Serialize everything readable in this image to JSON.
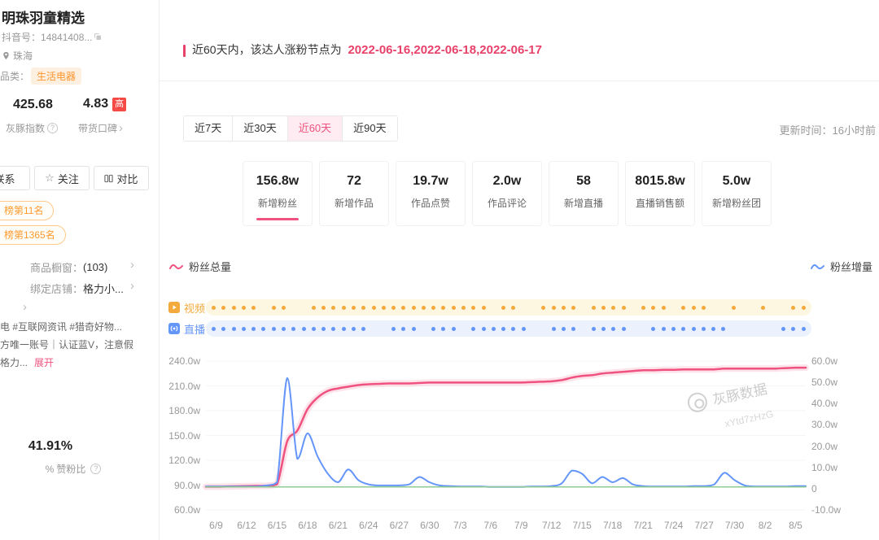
{
  "sidebar": {
    "title": "明珠羽童精选",
    "douyin_id_label": "抖音号：",
    "douyin_id": "14841408...",
    "location": "珠海",
    "category_label": "品类：",
    "category_tag": "生活电器",
    "index_value": "425.68",
    "index_label": "灰豚指数",
    "reputation_value": "4.83",
    "reputation_badge": "高",
    "reputation_label": "带货口碑",
    "contact_button": "联系",
    "follow_button": "关注",
    "compare_button": "对比",
    "rank_badges": [
      "榜第11名",
      "榜第1365名"
    ],
    "shop_window_label": "商品橱窗：",
    "shop_window_count": "(103)",
    "bound_shop_label": "绑定店铺：",
    "bound_shop_value": "格力小...",
    "intro_line1": "电 #互联网资讯 #猎奇好物...",
    "intro_line2": "方唯一账号｜认证蓝V，注意假",
    "intro_line3": "格力...",
    "expand_button": "展开",
    "like_fan_ratio": "41.91%",
    "like_fan_ratio_icon": "%",
    "like_fan_ratio_label": "赞粉比"
  },
  "main": {
    "notice_prefix": "近60天内，该达人涨粉节点为",
    "notice_dates": "2022-06-16,2022-06-18,2022-06-17",
    "accent_color": "#e8426b",
    "tabs": [
      {
        "label": "近7天",
        "active": false
      },
      {
        "label": "近30天",
        "active": false
      },
      {
        "label": "近60天",
        "active": true
      },
      {
        "label": "近90天",
        "active": false
      }
    ],
    "update_time": "更新时间：16小时前",
    "stat_cards": [
      {
        "value": "156.8w",
        "label": "新增粉丝",
        "active": true
      },
      {
        "value": "72",
        "label": "新增作品",
        "active": false
      },
      {
        "value": "19.7w",
        "label": "作品点赞",
        "active": false
      },
      {
        "value": "2.0w",
        "label": "作品评论",
        "active": false
      },
      {
        "value": "58",
        "label": "新增直播",
        "active": false
      },
      {
        "value": "8015.8w",
        "label": "直播销售额",
        "active": false
      },
      {
        "value": "5.0w",
        "label": "新增粉丝团",
        "active": false
      }
    ],
    "legend_left": "粉丝总量",
    "legend_right": "粉丝增量",
    "timeline_rows": [
      {
        "label": "视频",
        "color": "#f3a93c",
        "bg": "#fdf6e0",
        "dots": [
          1,
          1,
          1,
          1,
          1,
          0,
          1,
          1,
          0,
          0,
          1,
          1,
          1,
          1,
          1,
          1,
          1,
          1,
          1,
          1,
          1,
          1,
          1,
          1,
          1,
          1,
          1,
          1,
          0,
          1,
          1,
          0,
          0,
          1,
          1,
          1,
          1,
          0,
          1,
          1,
          1,
          1,
          0,
          1,
          1,
          1,
          0,
          1,
          1,
          1,
          0,
          0,
          1,
          0,
          0,
          1,
          0,
          0,
          1,
          1
        ]
      },
      {
        "label": "直播",
        "color": "#6495f9",
        "bg": "#ebf2fe",
        "dots": [
          1,
          1,
          1,
          1,
          1,
          1,
          1,
          1,
          1,
          1,
          1,
          1,
          1,
          1,
          1,
          1,
          0,
          0,
          1,
          1,
          1,
          0,
          1,
          1,
          1,
          0,
          1,
          1,
          1,
          1,
          1,
          1,
          0,
          0,
          1,
          1,
          1,
          0,
          1,
          1,
          1,
          1,
          0,
          0,
          1,
          1,
          1,
          1,
          1,
          1,
          1,
          1,
          0,
          0,
          0,
          0,
          0,
          1,
          1,
          1
        ]
      }
    ],
    "watermark_text": "灰豚数据",
    "watermark_code": "xYtd7zHzG"
  },
  "chart_data": {
    "type": "line",
    "title": "粉丝总量 / 粉丝增量（近60天）",
    "unit": "w",
    "grid": true,
    "x_count": 60,
    "x_tick_labels": [
      "6/9",
      "6/12",
      "6/15",
      "6/18",
      "6/21",
      "6/24",
      "6/27",
      "6/30",
      "7/3",
      "7/6",
      "7/9",
      "7/12",
      "7/15",
      "7/18",
      "7/21",
      "7/24",
      "7/27",
      "7/30",
      "8/2",
      "8/5"
    ],
    "x_tick_indices": [
      1,
      4,
      7,
      10,
      13,
      16,
      19,
      22,
      25,
      28,
      31,
      34,
      37,
      40,
      43,
      46,
      49,
      52,
      55,
      58
    ],
    "left_axis": {
      "label": "粉丝总量",
      "min": 60,
      "max": 240,
      "ticks": [
        "240.0w",
        "210.0w",
        "180.0w",
        "150.0w",
        "120.0w",
        "90.0w",
        "60.0w"
      ]
    },
    "right_axis": {
      "label": "粉丝增量",
      "min": -10,
      "max": 60,
      "ticks": [
        "60.0w",
        "50.0w",
        "40.0w",
        "30.0w",
        "20.0w",
        "10.0w",
        "0",
        "-10.0w"
      ]
    },
    "series": [
      {
        "name": "粉丝总量",
        "axis": "left",
        "color": "#f0527f",
        "width": 2.5,
        "glow": true,
        "values": [
          88,
          88,
          88.3,
          88.5,
          88.8,
          89,
          89.2,
          91,
          143,
          156,
          182,
          196,
          204,
          207,
          209,
          211,
          212,
          212.5,
          213,
          213,
          213,
          213.5,
          214,
          214,
          214,
          214,
          214,
          214,
          214,
          214,
          214,
          214,
          214.5,
          215,
          215.5,
          217,
          220,
          222,
          223,
          225,
          226,
          227,
          228,
          229,
          229,
          229.5,
          229.5,
          230,
          230,
          230,
          230,
          231,
          231,
          231,
          231,
          231,
          231,
          231.5,
          232,
          232
        ]
      },
      {
        "name": "粉丝增量",
        "axis": "right",
        "color": "#6495f9",
        "width": 2,
        "glow": false,
        "values": [
          1,
          1,
          1,
          1,
          1,
          1,
          1.5,
          3,
          52,
          14,
          26,
          15,
          7,
          3,
          9,
          4,
          2,
          1.5,
          1.5,
          1.5,
          2,
          5.5,
          3,
          1.5,
          1.2,
          1,
          1,
          1,
          0.8,
          0.8,
          0.8,
          0.8,
          1,
          1,
          1.2,
          2.5,
          8.5,
          7,
          2.5,
          5.5,
          3,
          5,
          2,
          1.2,
          1,
          1,
          1,
          1,
          1.2,
          1.2,
          2,
          7.5,
          4,
          1.5,
          1,
          1,
          1,
          1,
          1.2,
          1.2
        ]
      },
      {
        "name": "基准线",
        "axis": "right",
        "color": "#8fcb90",
        "width": 1.5,
        "glow": false,
        "values": [
          0.8,
          0.8,
          0.8,
          0.8,
          0.8,
          0.8,
          0.8,
          0.8,
          0.8,
          0.8,
          0.8,
          0.8,
          0.8,
          0.8,
          0.8,
          0.8,
          0.8,
          0.8,
          0.8,
          0.8,
          0.8,
          0.8,
          0.8,
          0.8,
          0.8,
          0.8,
          0.8,
          0.8,
          0.8,
          0.8,
          0.8,
          0.8,
          0.8,
          0.8,
          0.8,
          0.8,
          0.8,
          0.8,
          0.8,
          0.8,
          0.8,
          0.8,
          0.8,
          0.8,
          0.8,
          0.8,
          0.8,
          0.8,
          0.8,
          0.8,
          0.8,
          0.8,
          0.8,
          0.8,
          0.8,
          0.8,
          0.8,
          0.8,
          0.8,
          0.8
        ]
      }
    ]
  }
}
